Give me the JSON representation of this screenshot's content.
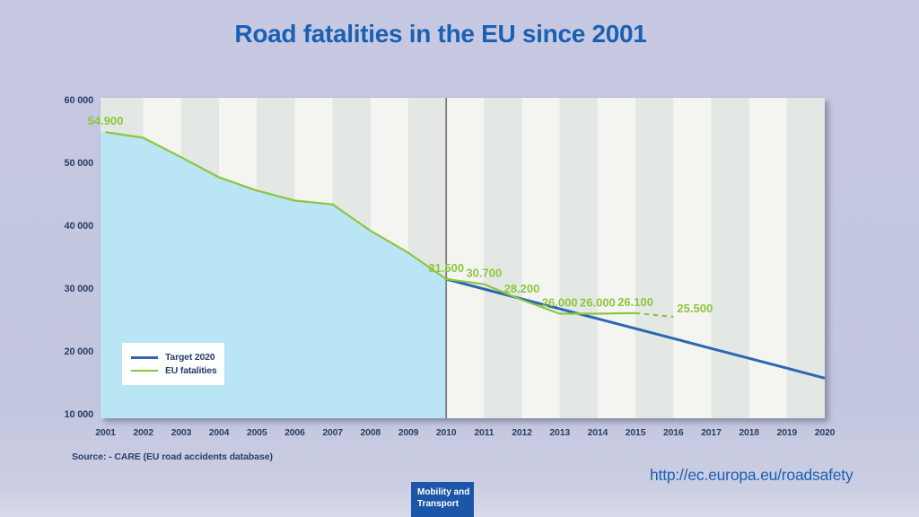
{
  "title": "Road fatalities in the EU since 2001",
  "source_note": "Source: - CARE (EU road accidents database)",
  "url_text": "http://ec.europa.eu/roadsafety",
  "badge": {
    "line1": "Mobility and",
    "line2": "Transport"
  },
  "legend": {
    "items": [
      {
        "label": "Target 2020",
        "color": "#2b67b2",
        "thickness": 3
      },
      {
        "label": "EU fatalities",
        "color": "#8cc63f",
        "thickness": 2
      }
    ]
  },
  "colors": {
    "background": "#c4c7e0",
    "title_blue": "#1a60b4",
    "axis_text": "#2b4066",
    "eu_line_green": "#8cc63f",
    "target_line_blue": "#2b67b2",
    "area_fill_blue": "#b9e5f4",
    "stripe_gray": "#e3e8e4",
    "stripe_white": "#f4f4f1",
    "divider_gray": "#77787a",
    "badge_blue": "#1c56a8",
    "legend_bg": "#ffffff"
  },
  "chart_data": {
    "type": "line",
    "title": "Road fatalities in the EU since 2001",
    "xlabel": "",
    "ylabel": "",
    "xlim": [
      2001,
      2020
    ],
    "ylim": [
      10000,
      60000
    ],
    "grid": "striped-year-columns",
    "legend_position": "middle-left",
    "divider_year": 2010,
    "xticks": [
      2001,
      2002,
      2003,
      2004,
      2005,
      2006,
      2007,
      2008,
      2009,
      2010,
      2011,
      2012,
      2013,
      2014,
      2015,
      2016,
      2017,
      2018,
      2019,
      2020
    ],
    "yticks": [
      {
        "value": 60000,
        "label": "60 000"
      },
      {
        "value": 50000,
        "label": "50 000"
      },
      {
        "value": 40000,
        "label": "40 000"
      },
      {
        "value": 30000,
        "label": "30 000"
      },
      {
        "value": 20000,
        "label": "20 000"
      },
      {
        "value": 10000,
        "label": "10 000"
      }
    ],
    "series": [
      {
        "name": "EU fatalities",
        "color": "#8cc63f",
        "x": [
          2001,
          2002,
          2003,
          2004,
          2005,
          2006,
          2007,
          2008,
          2009,
          2010,
          2011,
          2012,
          2013,
          2014,
          2015,
          2016
        ],
        "values": [
          54900,
          54000,
          50900,
          47700,
          45600,
          44000,
          43400,
          39200,
          35700,
          31500,
          30700,
          28200,
          26000,
          26000,
          26100,
          25500
        ],
        "dashed_from_x": 2015,
        "area_fill_until_x": 2010,
        "point_labels": [
          {
            "x": 2001,
            "text": "54.900"
          },
          {
            "x": 2010,
            "text": "31.500"
          },
          {
            "x": 2011,
            "text": "30.700"
          },
          {
            "x": 2012,
            "text": "28.200"
          },
          {
            "x": 2013,
            "text": "26.000"
          },
          {
            "x": 2014,
            "text": "26.000"
          },
          {
            "x": 2015,
            "text": "26.100"
          },
          {
            "x": 2016,
            "text": "25.500"
          }
        ]
      },
      {
        "name": "Target 2020",
        "color": "#2b67b2",
        "x": [
          2010,
          2011,
          2012,
          2013,
          2014,
          2015,
          2016,
          2017,
          2018,
          2019,
          2020
        ],
        "values": [
          31500,
          29925,
          28350,
          26775,
          25200,
          23625,
          22050,
          20475,
          18900,
          17325,
          15750
        ],
        "dashed_from_x": null,
        "point_labels": []
      }
    ]
  }
}
